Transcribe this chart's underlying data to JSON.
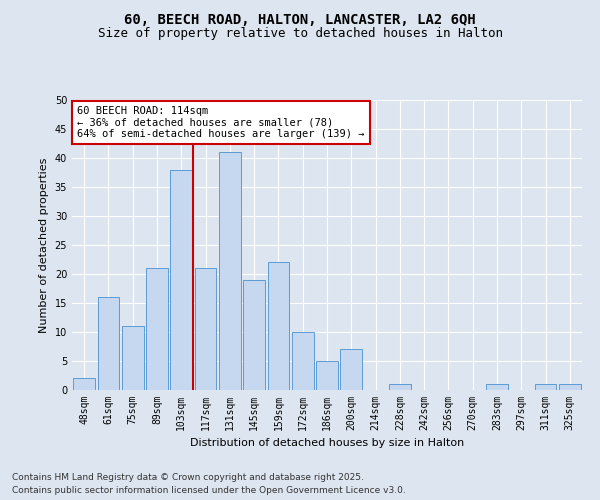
{
  "title": "60, BEECH ROAD, HALTON, LANCASTER, LA2 6QH",
  "subtitle": "Size of property relative to detached houses in Halton",
  "xlabel": "Distribution of detached houses by size in Halton",
  "ylabel": "Number of detached properties",
  "categories": [
    "48sqm",
    "61sqm",
    "75sqm",
    "89sqm",
    "103sqm",
    "117sqm",
    "131sqm",
    "145sqm",
    "159sqm",
    "172sqm",
    "186sqm",
    "200sqm",
    "214sqm",
    "228sqm",
    "242sqm",
    "256sqm",
    "270sqm",
    "283sqm",
    "297sqm",
    "311sqm",
    "325sqm"
  ],
  "values": [
    2,
    16,
    11,
    21,
    38,
    21,
    41,
    19,
    22,
    10,
    5,
    7,
    0,
    1,
    0,
    0,
    0,
    1,
    0,
    1,
    1
  ],
  "bar_color": "#c5d8f0",
  "bar_edge_color": "#5b9bd5",
  "annotation_line1": "60 BEECH ROAD: 114sqm",
  "annotation_line2": "← 36% of detached houses are smaller (78)",
  "annotation_line3": "64% of semi-detached houses are larger (139) →",
  "annotation_box_color": "#ffffff",
  "annotation_box_edge_color": "#cc0000",
  "vline_x_index": 4.5,
  "vline_color": "#cc0000",
  "ylim": [
    0,
    50
  ],
  "yticks": [
    0,
    5,
    10,
    15,
    20,
    25,
    30,
    35,
    40,
    45,
    50
  ],
  "background_color": "#dde5f0",
  "plot_bg_color": "#dde5f0",
  "footer_line1": "Contains HM Land Registry data © Crown copyright and database right 2025.",
  "footer_line2": "Contains public sector information licensed under the Open Government Licence v3.0.",
  "title_fontsize": 10,
  "subtitle_fontsize": 9,
  "tick_fontsize": 7,
  "ylabel_fontsize": 8,
  "xlabel_fontsize": 8,
  "annotation_fontsize": 7.5,
  "footer_fontsize": 6.5
}
